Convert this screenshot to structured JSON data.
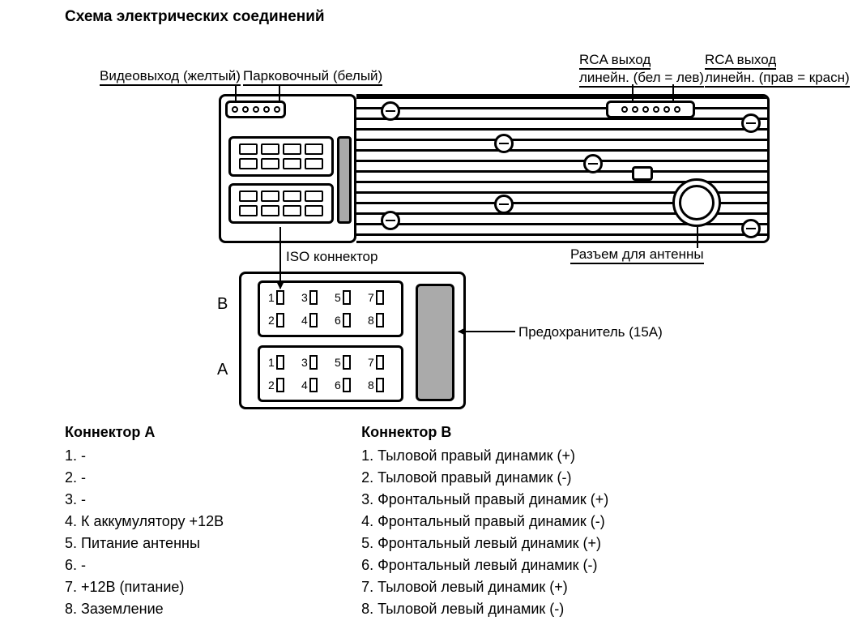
{
  "title": "Схема электрических соединений",
  "labels": {
    "video_out": "Видеовыход (желтый)",
    "parking": "Парковочный (белый)",
    "rca_left_top": "RCA выход",
    "rca_left_bot": "линейн. (бел = лев)",
    "rca_right_top": "RCA выход",
    "rca_right_bot": "линейн. (прав = красн)",
    "iso_connector": "ISO коннектор",
    "antenna": "Разъем для антенны",
    "fuse": "Предохранитель (15А)",
    "B": "B",
    "A": "A"
  },
  "iso_pins_b": [
    "1",
    "3",
    "5",
    "7",
    "2",
    "4",
    "6",
    "8"
  ],
  "iso_pins_a": [
    "1",
    "3",
    "5",
    "7",
    "2",
    "4",
    "6",
    "8"
  ],
  "connector_a": {
    "title": "Коннектор А",
    "items": [
      "1. -",
      "2. -",
      "3. -",
      "4. К аккумулятору +12В",
      "5. Питание антенны",
      "6. -",
      "7. +12В (питание)",
      "8. Заземление"
    ]
  },
  "connector_b": {
    "title": "Коннектор В",
    "items": [
      "1. Тыловой правый динамик (+)",
      "2. Тыловой правый динамик (-)",
      "3. Фронтальный правый динамик (+)",
      "4. Фронтальный правый динамик (-)",
      "5. Фронтальный левый динамик (+)",
      "6. Фронтальный левый динамик (-)",
      "7. Тыловой левый динамик (+)",
      "8. Тыловой левый динамик (-)"
    ]
  },
  "style": {
    "bg": "#ffffff",
    "fg": "#000000",
    "fuse_fill": "#aaaaaa",
    "font_family": "Arial",
    "title_fontsize": 19,
    "label_fontsize": 17,
    "list_fontsize": 18,
    "device_border_width": 3
  }
}
